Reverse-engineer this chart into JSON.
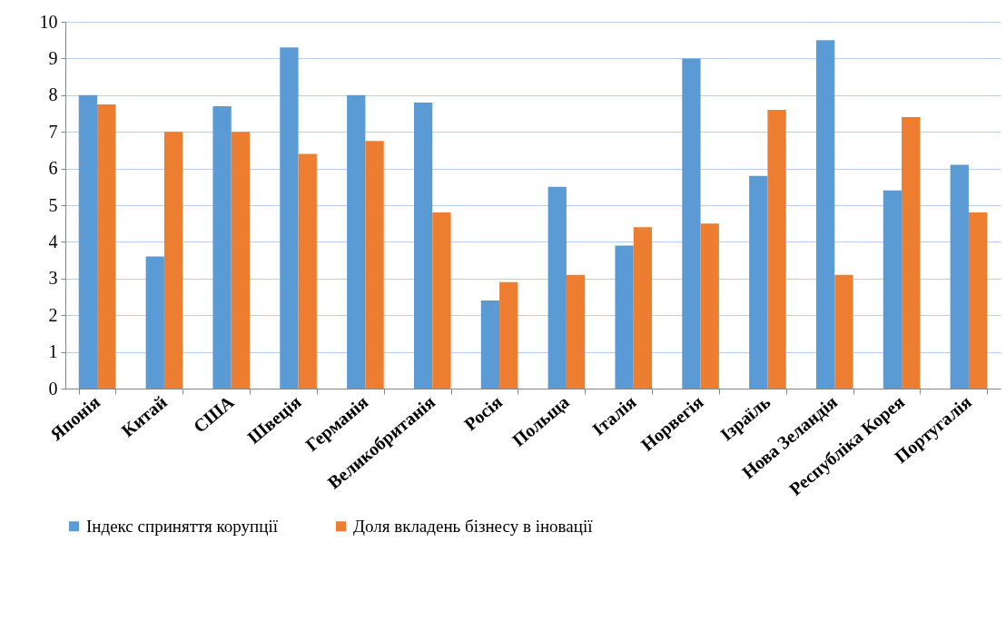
{
  "chart_data": {
    "type": "bar",
    "categories": [
      "Японія",
      "Китай",
      "США",
      "Швеція",
      "Германія",
      "Великобританія",
      "Росія",
      "Польща",
      "Італія",
      "Норвегія",
      "Ізраїль",
      "Нова Зеландія",
      "Республіка Корея",
      "Португалія"
    ],
    "series": [
      {
        "name": "Індекс сприняття корупції",
        "color": "#5b9bd5",
        "values": [
          8.0,
          3.6,
          7.7,
          9.3,
          8.0,
          7.8,
          2.4,
          5.5,
          3.9,
          9.0,
          5.8,
          9.5,
          5.4,
          6.1
        ]
      },
      {
        "name": "Доля вкладень бізнесу в іновації",
        "color": "#ed7d31",
        "values": [
          7.75,
          7.0,
          7.0,
          6.4,
          6.75,
          4.8,
          2.9,
          3.1,
          4.4,
          4.5,
          7.6,
          3.1,
          7.4,
          4.8
        ]
      }
    ],
    "ylim": [
      0,
      10
    ],
    "yticks": [
      0,
      1,
      2,
      3,
      4,
      5,
      6,
      7,
      8,
      9,
      10
    ],
    "grid": "y",
    "legend": "bottom"
  }
}
